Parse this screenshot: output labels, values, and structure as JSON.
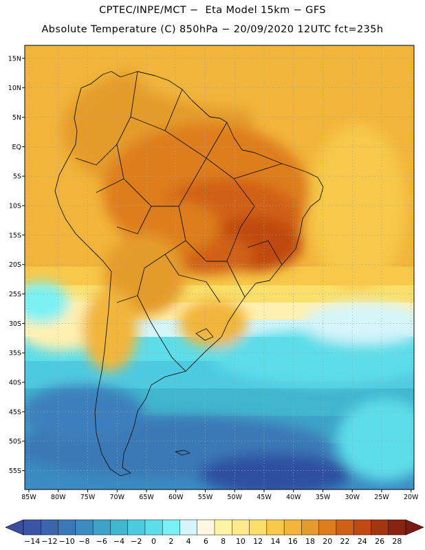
{
  "title_line1": "CPTEC/INPE/MCT −  Eta Model 15km − GFS",
  "title_line2": "Absolute Temperature (C) 850hPa − 20/09/2020 12UTC fct=235h",
  "lat_labels": [
    "15N",
    "10N",
    "5N",
    "EQ",
    "5S",
    "10S",
    "15S",
    "20S",
    "25S",
    "30S",
    "35S",
    "40S",
    "45S",
    "50S",
    "55S"
  ],
  "lat_values": [
    15,
    10,
    5,
    0,
    -5,
    -10,
    -15,
    -20,
    -25,
    -30,
    -35,
    -40,
    -45,
    -50,
    -55
  ],
  "lon_labels": [
    "85W",
    "80W",
    "75W",
    "70W",
    "65W",
    "60W",
    "55W",
    "50W",
    "45W",
    "40W",
    "35W",
    "30W",
    "25W",
    "20W"
  ],
  "lon_values": [
    -85,
    -80,
    -75,
    -70,
    -65,
    -60,
    -55,
    -50,
    -45,
    -40,
    -35,
    -30,
    -25,
    -20
  ],
  "domain": {
    "lon_min": -85.7,
    "lon_max": -19.5,
    "lat_min": -58.2,
    "lat_max": 17.2
  },
  "colorbar": {
    "labels": [
      "-14",
      "-12",
      "-10",
      "-8",
      "-6",
      "-4",
      "-2",
      "0",
      "2",
      "4",
      "6",
      "8",
      "10",
      "12",
      "14",
      "16",
      "18",
      "20",
      "22",
      "24",
      "26",
      "28"
    ],
    "colors": [
      "#3b55a4",
      "#3a66ad",
      "#3a78b6",
      "#3d8bc0",
      "#3ea3c8",
      "#40b6cf",
      "#4ecae0",
      "#5ddde9",
      "#7af0f5",
      "#d4f5fa",
      "#fff8e1",
      "#fff4a6",
      "#ffe98a",
      "#fadf6a",
      "#f7c84a",
      "#f2b53a",
      "#e59b2c",
      "#de7d1e",
      "#d06016",
      "#c04a10",
      "#a33510",
      "#8a2412"
    ],
    "under_color": "#3b4ea0",
    "over_color": "#7a1a12"
  }
}
